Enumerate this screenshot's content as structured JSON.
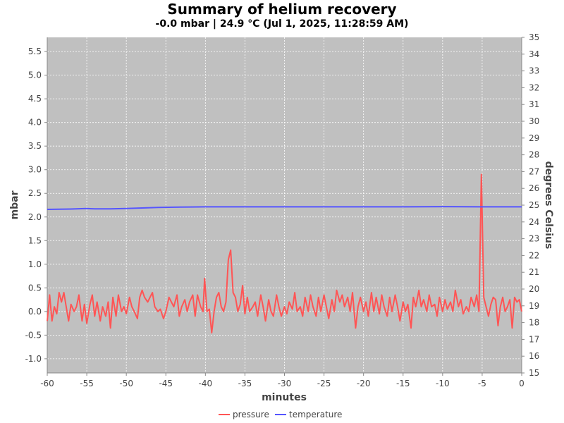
{
  "title": "Summary of helium recovery",
  "subtitle": "-0.0 mbar | 24.9 °C (Jul 1, 2025, 11:28:59 AM)",
  "chart_data": {
    "type": "line",
    "xlabel": "minutes",
    "ylabel": "mbar",
    "y2label": "degrees Celsius",
    "xlim": [
      -60,
      0
    ],
    "ylim": [
      -1.3,
      5.8
    ],
    "y2lim": [
      15,
      35
    ],
    "x_ticks": [
      -60,
      -55,
      -50,
      -45,
      -40,
      -35,
      -30,
      -25,
      -20,
      -15,
      -10,
      -5,
      0
    ],
    "y_ticks": [
      -1.0,
      -0.5,
      0.0,
      0.5,
      1.0,
      1.5,
      2.0,
      2.5,
      3.0,
      3.5,
      4.0,
      4.5,
      5.0,
      5.5
    ],
    "y_tick_labels": [
      "-1.0",
      "-0.5",
      "0.0",
      "0.5",
      "1.0",
      "1.5",
      "2.0",
      "2.5",
      "3.0",
      "3.5",
      "4.0",
      "4.5",
      "5.0",
      "5.5"
    ],
    "y2_ticks": [
      15,
      16,
      17,
      18,
      19,
      20,
      21,
      22,
      23,
      24,
      25,
      26,
      27,
      28,
      29,
      30,
      31,
      32,
      33,
      34,
      35
    ],
    "grid": true,
    "background": "#c0c0c0",
    "legend_position": "bottom",
    "series": [
      {
        "name": "pressure",
        "axis": "left",
        "color": "#ff5555",
        "points": [
          [
            -60,
            -0.2
          ],
          [
            -59.7,
            0.35
          ],
          [
            -59.4,
            -0.2
          ],
          [
            -59.1,
            0.1
          ],
          [
            -58.8,
            -0.05
          ],
          [
            -58.5,
            0.4
          ],
          [
            -58.2,
            0.2
          ],
          [
            -57.9,
            0.4
          ],
          [
            -57.6,
            0.1
          ],
          [
            -57.3,
            -0.2
          ],
          [
            -57.0,
            0.15
          ],
          [
            -56.6,
            0.0
          ],
          [
            -56.3,
            0.1
          ],
          [
            -56.0,
            0.35
          ],
          [
            -55.6,
            -0.2
          ],
          [
            -55.3,
            0.15
          ],
          [
            -55.0,
            -0.25
          ],
          [
            -54.6,
            0.15
          ],
          [
            -54.3,
            0.35
          ],
          [
            -54.0,
            -0.1
          ],
          [
            -53.7,
            0.2
          ],
          [
            -53.3,
            -0.2
          ],
          [
            -53.0,
            0.1
          ],
          [
            -52.6,
            -0.1
          ],
          [
            -52.3,
            0.2
          ],
          [
            -52.0,
            -0.35
          ],
          [
            -51.7,
            0.3
          ],
          [
            -51.3,
            -0.1
          ],
          [
            -51.0,
            0.35
          ],
          [
            -50.6,
            0.0
          ],
          [
            -50.3,
            0.1
          ],
          [
            -50.0,
            -0.05
          ],
          [
            -49.6,
            0.3
          ],
          [
            -49.3,
            0.1
          ],
          [
            -49.0,
            0.0
          ],
          [
            -48.6,
            -0.15
          ],
          [
            -48.3,
            0.3
          ],
          [
            -48.0,
            0.45
          ],
          [
            -47.7,
            0.3
          ],
          [
            -47.3,
            0.2
          ],
          [
            -47.0,
            0.3
          ],
          [
            -46.7,
            0.4
          ],
          [
            -46.4,
            0.1
          ],
          [
            -46.0,
            0.0
          ],
          [
            -45.7,
            0.05
          ],
          [
            -45.3,
            -0.15
          ],
          [
            -45.0,
            0.0
          ],
          [
            -44.6,
            0.3
          ],
          [
            -44.3,
            0.2
          ],
          [
            -44.0,
            0.1
          ],
          [
            -43.6,
            0.35
          ],
          [
            -43.3,
            -0.1
          ],
          [
            -43.0,
            0.1
          ],
          [
            -42.6,
            0.25
          ],
          [
            -42.3,
            0.0
          ],
          [
            -42.0,
            0.2
          ],
          [
            -41.6,
            0.35
          ],
          [
            -41.3,
            -0.1
          ],
          [
            -41.0,
            0.35
          ],
          [
            -40.6,
            0.1
          ],
          [
            -40.3,
            0.0
          ],
          [
            -40.1,
            0.7
          ],
          [
            -39.8,
            0.0
          ],
          [
            -39.5,
            0.05
          ],
          [
            -39.2,
            -0.45
          ],
          [
            -38.9,
            0.0
          ],
          [
            -38.6,
            0.3
          ],
          [
            -38.3,
            0.4
          ],
          [
            -38.0,
            0.1
          ],
          [
            -37.7,
            0.0
          ],
          [
            -37.4,
            0.2
          ],
          [
            -37.1,
            1.1
          ],
          [
            -36.8,
            1.3
          ],
          [
            -36.5,
            0.4
          ],
          [
            -36.2,
            0.3
          ],
          [
            -35.9,
            0.0
          ],
          [
            -35.6,
            0.15
          ],
          [
            -35.3,
            0.55
          ],
          [
            -35.0,
            -0.05
          ],
          [
            -34.7,
            0.3
          ],
          [
            -34.4,
            0.0
          ],
          [
            -34.0,
            0.1
          ],
          [
            -33.7,
            0.2
          ],
          [
            -33.4,
            -0.1
          ],
          [
            -33.0,
            0.35
          ],
          [
            -32.7,
            0.1
          ],
          [
            -32.4,
            -0.2
          ],
          [
            -32.0,
            0.25
          ],
          [
            -31.7,
            0.0
          ],
          [
            -31.4,
            -0.1
          ],
          [
            -31.0,
            0.35
          ],
          [
            -30.7,
            0.1
          ],
          [
            -30.4,
            -0.1
          ],
          [
            -30.0,
            0.1
          ],
          [
            -29.7,
            -0.05
          ],
          [
            -29.4,
            0.2
          ],
          [
            -29.0,
            0.05
          ],
          [
            -28.7,
            0.4
          ],
          [
            -28.4,
            0.0
          ],
          [
            -28.0,
            0.1
          ],
          [
            -27.7,
            -0.1
          ],
          [
            -27.4,
            0.3
          ],
          [
            -27.0,
            0.0
          ],
          [
            -26.7,
            0.35
          ],
          [
            -26.4,
            0.1
          ],
          [
            -26.0,
            -0.1
          ],
          [
            -25.7,
            0.3
          ],
          [
            -25.4,
            0.0
          ],
          [
            -25.0,
            0.35
          ],
          [
            -24.7,
            0.1
          ],
          [
            -24.4,
            -0.15
          ],
          [
            -24.0,
            0.25
          ],
          [
            -23.7,
            0.0
          ],
          [
            -23.4,
            0.45
          ],
          [
            -23.0,
            0.2
          ],
          [
            -22.7,
            0.35
          ],
          [
            -22.4,
            0.1
          ],
          [
            -22.0,
            0.3
          ],
          [
            -21.7,
            0.0
          ],
          [
            -21.4,
            0.4
          ],
          [
            -21.0,
            -0.35
          ],
          [
            -20.7,
            0.1
          ],
          [
            -20.4,
            0.3
          ],
          [
            -20.0,
            0.0
          ],
          [
            -19.7,
            0.2
          ],
          [
            -19.4,
            -0.1
          ],
          [
            -19.0,
            0.4
          ],
          [
            -18.7,
            0.0
          ],
          [
            -18.4,
            0.3
          ],
          [
            -18.0,
            -0.05
          ],
          [
            -17.7,
            0.35
          ],
          [
            -17.4,
            0.1
          ],
          [
            -17.0,
            -0.1
          ],
          [
            -16.7,
            0.3
          ],
          [
            -16.4,
            0.0
          ],
          [
            -16.0,
            0.35
          ],
          [
            -15.7,
            0.1
          ],
          [
            -15.4,
            -0.2
          ],
          [
            -15.0,
            0.2
          ],
          [
            -14.7,
            0.0
          ],
          [
            -14.4,
            0.15
          ],
          [
            -14.0,
            -0.35
          ],
          [
            -13.7,
            0.3
          ],
          [
            -13.4,
            0.1
          ],
          [
            -13.0,
            0.45
          ],
          [
            -12.7,
            0.1
          ],
          [
            -12.4,
            0.25
          ],
          [
            -12.0,
            0.0
          ],
          [
            -11.7,
            0.35
          ],
          [
            -11.4,
            0.1
          ],
          [
            -11.0,
            0.15
          ],
          [
            -10.7,
            -0.1
          ],
          [
            -10.4,
            0.3
          ],
          [
            -10.0,
            0.0
          ],
          [
            -9.7,
            0.25
          ],
          [
            -9.4,
            0.05
          ],
          [
            -9.0,
            0.2
          ],
          [
            -8.7,
            0.0
          ],
          [
            -8.4,
            0.45
          ],
          [
            -8.0,
            0.1
          ],
          [
            -7.7,
            0.25
          ],
          [
            -7.4,
            -0.05
          ],
          [
            -7.0,
            0.1
          ],
          [
            -6.7,
            0.0
          ],
          [
            -6.4,
            0.3
          ],
          [
            -6.0,
            0.1
          ],
          [
            -5.7,
            0.35
          ],
          [
            -5.4,
            0.0
          ],
          [
            -5.1,
            2.9
          ],
          [
            -4.8,
            0.3
          ],
          [
            -4.5,
            0.1
          ],
          [
            -4.2,
            -0.1
          ],
          [
            -3.9,
            0.15
          ],
          [
            -3.6,
            0.3
          ],
          [
            -3.3,
            0.25
          ],
          [
            -3.0,
            -0.3
          ],
          [
            -2.7,
            0.1
          ],
          [
            -2.4,
            0.3
          ],
          [
            -2.1,
            0.0
          ],
          [
            -1.8,
            0.1
          ],
          [
            -1.5,
            0.25
          ],
          [
            -1.2,
            -0.35
          ],
          [
            -0.9,
            0.3
          ],
          [
            -0.6,
            0.2
          ],
          [
            -0.3,
            0.25
          ],
          [
            0,
            0.0
          ]
        ]
      },
      {
        "name": "temperature",
        "axis": "right",
        "color": "#5555ff",
        "points": [
          [
            -60,
            24.75
          ],
          [
            -57,
            24.77
          ],
          [
            -55,
            24.8
          ],
          [
            -54,
            24.78
          ],
          [
            -52,
            24.78
          ],
          [
            -50,
            24.8
          ],
          [
            -48,
            24.83
          ],
          [
            -46,
            24.86
          ],
          [
            -44,
            24.88
          ],
          [
            -42,
            24.89
          ],
          [
            -40,
            24.9
          ],
          [
            -35,
            24.9
          ],
          [
            -30,
            24.9
          ],
          [
            -25,
            24.9
          ],
          [
            -20,
            24.9
          ],
          [
            -15,
            24.9
          ],
          [
            -10,
            24.91
          ],
          [
            -5,
            24.9
          ],
          [
            0,
            24.9
          ]
        ]
      }
    ]
  }
}
